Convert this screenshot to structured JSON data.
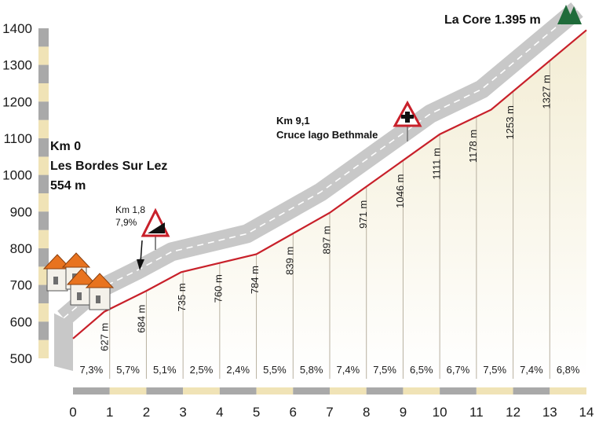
{
  "chart_data": {
    "type": "area",
    "title": "",
    "xlabel": "",
    "ylabel": "",
    "xlim": [
      0,
      14
    ],
    "ylim": [
      500,
      1400
    ],
    "x_ticks": [
      "0",
      "1",
      "2",
      "3",
      "4",
      "5",
      "6",
      "7",
      "8",
      "9",
      "10",
      "11",
      "12",
      "13",
      "14"
    ],
    "y_ticks": [
      "500",
      "600",
      "700",
      "800",
      "900",
      "1000",
      "1100",
      "1200",
      "1300",
      "1400"
    ],
    "profile": {
      "km": [
        0,
        0.85,
        2,
        2.95,
        5,
        7,
        10,
        11.4,
        14
      ],
      "elevation_m": [
        554,
        627,
        684,
        735,
        784,
        897,
        1111,
        1178,
        1395
      ]
    },
    "elevation_labels": [
      {
        "km": 0.85,
        "text": "627 m"
      },
      {
        "km": 1.85,
        "text": "684 m"
      },
      {
        "km": 2.95,
        "text": "735 m"
      },
      {
        "km": 3.95,
        "text": "760 m"
      },
      {
        "km": 4.95,
        "text": "784 m"
      },
      {
        "km": 5.9,
        "text": "839 m"
      },
      {
        "km": 6.9,
        "text": "897 m"
      },
      {
        "km": 7.9,
        "text": "971 m"
      },
      {
        "km": 8.9,
        "text": "1046 m"
      },
      {
        "km": 9.9,
        "text": "1111 m"
      },
      {
        "km": 10.9,
        "text": "1178 m"
      },
      {
        "km": 11.9,
        "text": "1253 m"
      },
      {
        "km": 12.9,
        "text": "1327 m"
      }
    ],
    "gradients": [
      "7,3%",
      "5,7%",
      "5,1%",
      "2,5%",
      "2,4%",
      "5,5%",
      "5,8%",
      "7,4%",
      "7,5%",
      "6,5%",
      "6,7%",
      "7,5%",
      "7,4%",
      "6,8%"
    ],
    "start_label": [
      "Km 0",
      "Les Bordes Sur Lez",
      "554 m"
    ],
    "summit_label": "La Core 1.395 m",
    "steep_label": [
      "Km 1,8",
      "7,9%"
    ],
    "junction_label": [
      "Km 9,1",
      "Cruce lago Bethmale"
    ],
    "colors": {
      "profile_line": "#c8202a",
      "road": "#c8c8c8",
      "fill_top": "#f3edd4",
      "fill_bottom": "#ffffff",
      "scale_light": "#f0e3b6",
      "scale_dark": "#a9a9a9",
      "tree": "#1f6b3a"
    }
  }
}
